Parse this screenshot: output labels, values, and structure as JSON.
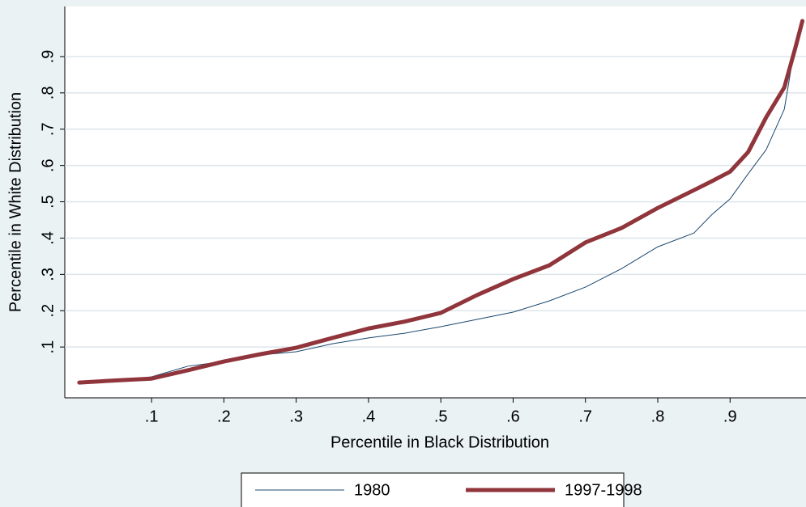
{
  "chart_data": {
    "type": "line",
    "x_label": "Percentile in Black Distribution",
    "y_label": "Percentile in White Distribution",
    "x": [
      0,
      0.05,
      0.1,
      0.15,
      0.2,
      0.25,
      0.3,
      0.35,
      0.4,
      0.45,
      0.5,
      0.55,
      0.6,
      0.65,
      0.7,
      0.75,
      0.8,
      0.85,
      0.875,
      0.9,
      0.925,
      0.95,
      0.975,
      0.99,
      1.0
    ],
    "series": [
      {
        "name": "1980",
        "color": "#1a476f",
        "width": 1,
        "values": [
          0.003,
          0.007,
          0.018,
          0.047,
          0.06,
          0.078,
          0.087,
          0.109,
          0.125,
          0.138,
          0.156,
          0.176,
          0.196,
          0.227,
          0.265,
          0.316,
          0.376,
          0.414,
          0.465,
          0.508,
          0.577,
          0.644,
          0.755,
          0.933,
          0.993
        ]
      },
      {
        "name": "1997-1998",
        "color": "#90353b",
        "width": 5,
        "values": [
          0.002,
          0.008,
          0.013,
          0.036,
          0.06,
          0.08,
          0.098,
          0.125,
          0.151,
          0.17,
          0.194,
          0.243,
          0.287,
          0.325,
          0.388,
          0.428,
          0.483,
          0.532,
          0.557,
          0.583,
          0.637,
          0.733,
          0.815,
          0.922,
          0.998
        ]
      }
    ],
    "xlim": [
      -0.02,
      1.005
    ],
    "ylim": [
      -0.04,
      1.038
    ],
    "xticks": [
      {
        "value": 0.1,
        "label": ".1"
      },
      {
        "value": 0.2,
        "label": ".2"
      },
      {
        "value": 0.3,
        "label": ".3"
      },
      {
        "value": 0.4,
        "label": ".4"
      },
      {
        "value": 0.5,
        "label": ".5"
      },
      {
        "value": 0.6,
        "label": ".6"
      },
      {
        "value": 0.7,
        "label": ".7"
      },
      {
        "value": 0.8,
        "label": ".8"
      },
      {
        "value": 0.9,
        "label": ".9"
      }
    ],
    "yticks": [
      {
        "value": 0.1,
        "label": ".1"
      },
      {
        "value": 0.2,
        "label": ".2"
      },
      {
        "value": 0.3,
        "label": ".3"
      },
      {
        "value": 0.4,
        "label": ".4"
      },
      {
        "value": 0.5,
        "label": ".5"
      },
      {
        "value": 0.6,
        "label": ".6"
      },
      {
        "value": 0.7,
        "label": ".7"
      },
      {
        "value": 0.8,
        "label": ".8"
      },
      {
        "value": 0.9,
        "label": ".9"
      }
    ],
    "grid": true,
    "legend": "bottom"
  }
}
